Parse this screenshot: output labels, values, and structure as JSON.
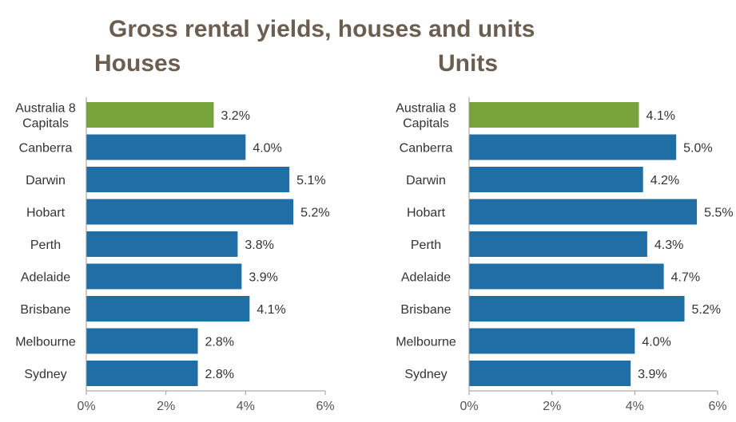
{
  "chart_data": {
    "type": "bar",
    "title": "Gross rental yields, houses and units",
    "panels": [
      {
        "title": "Houses",
        "orientation": "horizontal",
        "categories": [
          "Australia 8 Capitals",
          "Canberra",
          "Darwin",
          "Hobart",
          "Perth",
          "Adelaide",
          "Brisbane",
          "Melbourne",
          "Sydney"
        ],
        "category_lines": [
          [
            "Australia  8",
            "Capitals"
          ],
          [
            "Canberra"
          ],
          [
            "Darwin"
          ],
          [
            "Hobart"
          ],
          [
            "Perth"
          ],
          [
            "Adelaide"
          ],
          [
            "Brisbane"
          ],
          [
            "Melbourne"
          ],
          [
            "Sydney"
          ]
        ],
        "values": [
          3.2,
          4.0,
          5.1,
          5.2,
          3.8,
          3.9,
          4.1,
          2.8,
          2.8
        ],
        "value_labels": [
          "3.2%",
          "4.0%",
          "5.1%",
          "5.2%",
          "3.8%",
          "3.9%",
          "4.1%",
          "2.8%",
          "2.8%"
        ],
        "xlim": [
          0,
          6
        ],
        "xticks": [
          0,
          2,
          4,
          6
        ],
        "xtick_labels": [
          "0%",
          "2%",
          "4%",
          "6%"
        ]
      },
      {
        "title": "Units",
        "orientation": "horizontal",
        "categories": [
          "Australia 8 Capitals",
          "Canberra",
          "Darwin",
          "Hobart",
          "Perth",
          "Adelaide",
          "Brisbane",
          "Melbourne",
          "Sydney"
        ],
        "category_lines": [
          [
            "Australia  8",
            "Capitals"
          ],
          [
            "Canberra"
          ],
          [
            "Darwin"
          ],
          [
            "Hobart"
          ],
          [
            "Perth"
          ],
          [
            "Adelaide"
          ],
          [
            "Brisbane"
          ],
          [
            "Melbourne"
          ],
          [
            "Sydney"
          ]
        ],
        "values": [
          4.1,
          5.0,
          4.2,
          5.5,
          4.3,
          4.7,
          5.2,
          4.0,
          3.9
        ],
        "value_labels": [
          "4.1%",
          "5.0%",
          "4.2%",
          "5.5%",
          "4.3%",
          "4.7%",
          "5.2%",
          "4.0%",
          "3.9%"
        ],
        "xlim": [
          0,
          6
        ],
        "xticks": [
          0,
          2,
          4,
          6
        ],
        "xtick_labels": [
          "0%",
          "2%",
          "4%",
          "6%"
        ]
      }
    ],
    "colors": {
      "highlight": "#77a33a",
      "bar": "#1f6ea6",
      "title": "#6b5e50",
      "axis": "#999999"
    },
    "grid": false
  }
}
